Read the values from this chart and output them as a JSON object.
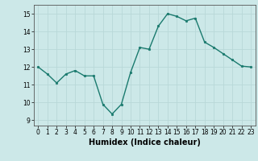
{
  "x": [
    0,
    1,
    2,
    3,
    4,
    5,
    6,
    7,
    8,
    9,
    10,
    11,
    12,
    13,
    14,
    15,
    16,
    17,
    18,
    19,
    20,
    21,
    22,
    23
  ],
  "y": [
    12.0,
    11.6,
    11.1,
    11.6,
    11.8,
    11.5,
    11.5,
    9.9,
    9.35,
    9.9,
    11.7,
    13.1,
    13.0,
    14.3,
    15.0,
    14.85,
    14.6,
    14.75,
    13.4,
    13.1,
    12.75,
    12.4,
    12.05,
    12.0
  ],
  "line_color": "#1a7a6e",
  "marker": "o",
  "marker_size": 1.8,
  "linewidth": 1.0,
  "xlabel": "Humidex (Indice chaleur)",
  "xlabel_fontsize": 7,
  "xlim": [
    -0.5,
    23.5
  ],
  "ylim": [
    8.7,
    15.5
  ],
  "yticks": [
    9,
    10,
    11,
    12,
    13,
    14,
    15
  ],
  "xticks": [
    0,
    1,
    2,
    3,
    4,
    5,
    6,
    7,
    8,
    9,
    10,
    11,
    12,
    13,
    14,
    15,
    16,
    17,
    18,
    19,
    20,
    21,
    22,
    23
  ],
  "bg_color": "#cce8e8",
  "grid_color": "#b8d8d8",
  "tick_fontsize": 5.5
}
